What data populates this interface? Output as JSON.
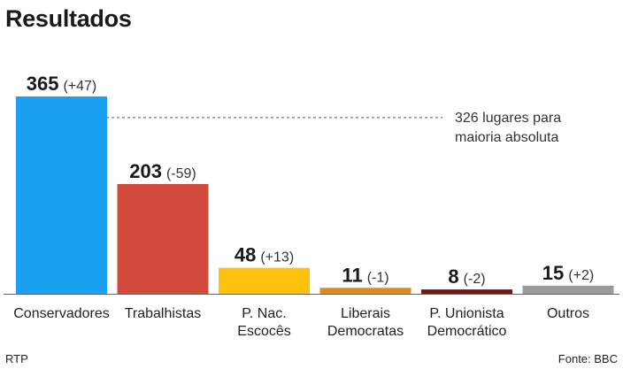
{
  "header": {
    "title": "Resultados"
  },
  "footer": {
    "left": "RTP",
    "right": "Fonte: BBC"
  },
  "chart_data": {
    "type": "bar",
    "title": "Resultados",
    "categories": [
      "Conservadores",
      "Trabalhistas",
      "P. Nac.\nEscocês",
      "Liberais\nDemocratas",
      "P. Unionista\nDemocrático",
      "Outros"
    ],
    "values": [
      365,
      203,
      48,
      11,
      8,
      15
    ],
    "changes": [
      "(+47)",
      "(-59)",
      "(+13)",
      "(-1)",
      "(-2)",
      "(+2)"
    ],
    "colors": [
      "#1ba1f2",
      "#d24a3c",
      "#fec10e",
      "#e08a1e",
      "#7a1414",
      "#9a9a9a"
    ],
    "ylim": [
      0,
      365
    ],
    "xlabel": "",
    "ylabel": "",
    "reference_line": {
      "value": 326,
      "label_lines": [
        "326 lugares para",
        "maioria absoluta"
      ]
    }
  }
}
